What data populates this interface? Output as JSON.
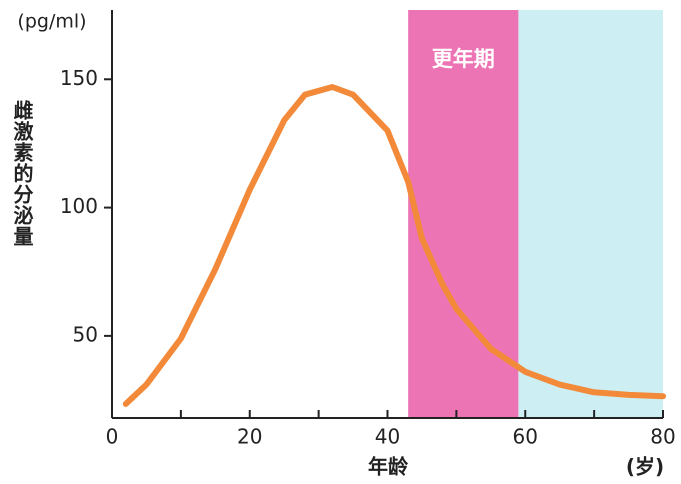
{
  "chart_data": {
    "type": "line",
    "unit_label": "(pg/ml)",
    "y_label": "雌激素的分泌量",
    "x_label": "年龄",
    "x_unit_label": "(岁)",
    "band_label": "更年期",
    "band": [
      43,
      59
    ],
    "band_color": "#ec74b4",
    "after_band_color": "#cdeff4",
    "x": [
      2,
      5,
      10,
      15,
      20,
      25,
      28,
      32,
      35,
      40,
      43,
      45,
      48,
      50,
      55,
      60,
      65,
      70,
      75,
      80
    ],
    "series": [
      {
        "color": "#f28a3a",
        "values": [
          23.5,
          31,
          49,
          76,
          107,
          134,
          144,
          147,
          144,
          130,
          110,
          88,
          70,
          60.5,
          45,
          36,
          31,
          28,
          27,
          26.5
        ]
      }
    ],
    "xlim": [
      0,
      80
    ],
    "xticks": [
      0,
      20,
      40,
      60,
      80
    ],
    "x_minor_ticks": [
      10,
      30,
      50,
      70
    ],
    "ylim": [
      18,
      177
    ],
    "yticks": [
      50,
      100,
      150
    ]
  }
}
